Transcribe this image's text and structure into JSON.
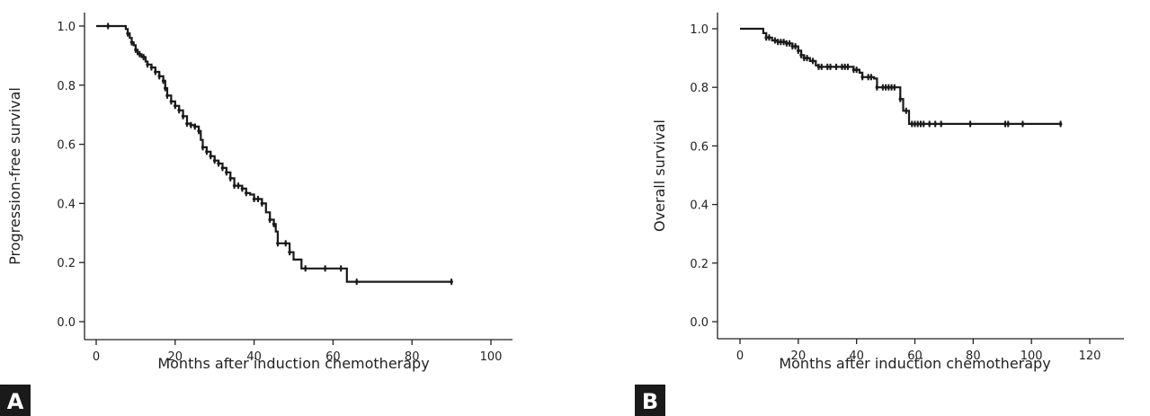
{
  "colors": {
    "line": "#1a1a1a",
    "badge": "#1a1a1a"
  },
  "chart_data": [
    {
      "panel": "A",
      "type": "line",
      "step": true,
      "title": "",
      "xlabel": "Months after induction chemotherapy",
      "ylabel": "Progression-free survival",
      "xlim": [
        0,
        100
      ],
      "ylim": [
        0.0,
        1.0
      ],
      "xticks": [
        0,
        20,
        40,
        60,
        80,
        100
      ],
      "yticks": [
        0.0,
        0.2,
        0.4,
        0.6,
        0.8,
        1.0
      ],
      "xtick_labels": [
        "0",
        "20",
        "40",
        "60",
        "80",
        "100"
      ],
      "ytick_labels": [
        "0.0",
        "0.2",
        "0.4",
        "0.6",
        "0.8",
        "1.0"
      ],
      "grid": false,
      "series": [
        {
          "points": [
            [
              0,
              1.0
            ],
            [
              7,
              1.0
            ],
            [
              7.5,
              0.99
            ],
            [
              8,
              0.975
            ],
            [
              8.5,
              0.96
            ],
            [
              9,
              0.945
            ],
            [
              9.5,
              0.935
            ],
            [
              10,
              0.92
            ],
            [
              10.5,
              0.905
            ],
            [
              11.5,
              0.895
            ],
            [
              12.5,
              0.88
            ],
            [
              13,
              0.87
            ],
            [
              14,
              0.86
            ],
            [
              15,
              0.845
            ],
            [
              16,
              0.83
            ],
            [
              17,
              0.815
            ],
            [
              17.5,
              0.79
            ],
            [
              18,
              0.765
            ],
            [
              19,
              0.745
            ],
            [
              20,
              0.73
            ],
            [
              21,
              0.715
            ],
            [
              22,
              0.695
            ],
            [
              23,
              0.67
            ],
            [
              24,
              0.665
            ],
            [
              25,
              0.66
            ],
            [
              26,
              0.645
            ],
            [
              26.5,
              0.615
            ],
            [
              27,
              0.59
            ],
            [
              28,
              0.575
            ],
            [
              29,
              0.56
            ],
            [
              30,
              0.545
            ],
            [
              31,
              0.535
            ],
            [
              32,
              0.52
            ],
            [
              33,
              0.505
            ],
            [
              34,
              0.485
            ],
            [
              35,
              0.46
            ],
            [
              37,
              0.45
            ],
            [
              38,
              0.435
            ],
            [
              39,
              0.43
            ],
            [
              40,
              0.415
            ],
            [
              42,
              0.4
            ],
            [
              43,
              0.37
            ],
            [
              44,
              0.345
            ],
            [
              45,
              0.33
            ],
            [
              45.5,
              0.305
            ],
            [
              46,
              0.265
            ],
            [
              48,
              0.265
            ],
            [
              49,
              0.235
            ],
            [
              50,
              0.21
            ],
            [
              52,
              0.18
            ],
            [
              63,
              0.18
            ],
            [
              63.5,
              0.135
            ],
            [
              90,
              0.135
            ]
          ],
          "censor_x": [
            3,
            8,
            9,
            10,
            11,
            12,
            13,
            14,
            15,
            16,
            17,
            17.5,
            18,
            19,
            20,
            21,
            22,
            23,
            24,
            25,
            26,
            27,
            28,
            29,
            30,
            31,
            32,
            33,
            34,
            35,
            36,
            37,
            38,
            40,
            41,
            42,
            44,
            45,
            46,
            48,
            49,
            53,
            58,
            62,
            66,
            90
          ]
        }
      ]
    },
    {
      "panel": "B",
      "type": "line",
      "step": true,
      "title": "",
      "xlabel": "Months after induction chemotherapy",
      "ylabel": "Overall survival",
      "xlim": [
        0,
        120
      ],
      "ylim": [
        0.0,
        1.0
      ],
      "xticks": [
        0,
        20,
        40,
        60,
        80,
        100,
        120
      ],
      "yticks": [
        0.0,
        0.2,
        0.4,
        0.6,
        0.8,
        1.0
      ],
      "xtick_labels": [
        "0",
        "20",
        "40",
        "60",
        "80",
        "100",
        "120"
      ],
      "ytick_labels": [
        "0.0",
        "0.2",
        "0.4",
        "0.6",
        "0.8",
        "1.0"
      ],
      "grid": false,
      "series": [
        {
          "points": [
            [
              0,
              1.0
            ],
            [
              7,
              1.0
            ],
            [
              8,
              0.985
            ],
            [
              9,
              0.97
            ],
            [
              11,
              0.96
            ],
            [
              13,
              0.955
            ],
            [
              16,
              0.95
            ],
            [
              18,
              0.94
            ],
            [
              20,
              0.925
            ],
            [
              21,
              0.91
            ],
            [
              22,
              0.9
            ],
            [
              24,
              0.89
            ],
            [
              26,
              0.875
            ],
            [
              27,
              0.87
            ],
            [
              38,
              0.87
            ],
            [
              39,
              0.86
            ],
            [
              41,
              0.85
            ],
            [
              42,
              0.835
            ],
            [
              46,
              0.83
            ],
            [
              47,
              0.8
            ],
            [
              54,
              0.8
            ],
            [
              55,
              0.76
            ],
            [
              56,
              0.72
            ],
            [
              57,
              0.72
            ],
            [
              58,
              0.675
            ],
            [
              110,
              0.675
            ]
          ],
          "censor_x": [
            9,
            10,
            12,
            13,
            14,
            15,
            16,
            17,
            18,
            19,
            20,
            21,
            22,
            23,
            25,
            27,
            28,
            30,
            31,
            33,
            35,
            36,
            37,
            39,
            40,
            42,
            44,
            45,
            47,
            49,
            50,
            51,
            52,
            53,
            55,
            57,
            59,
            60,
            61,
            62,
            63,
            65,
            67,
            69,
            79,
            91,
            92,
            97,
            110
          ]
        }
      ]
    }
  ],
  "panel_labels": {
    "a": "A",
    "b": "B"
  }
}
